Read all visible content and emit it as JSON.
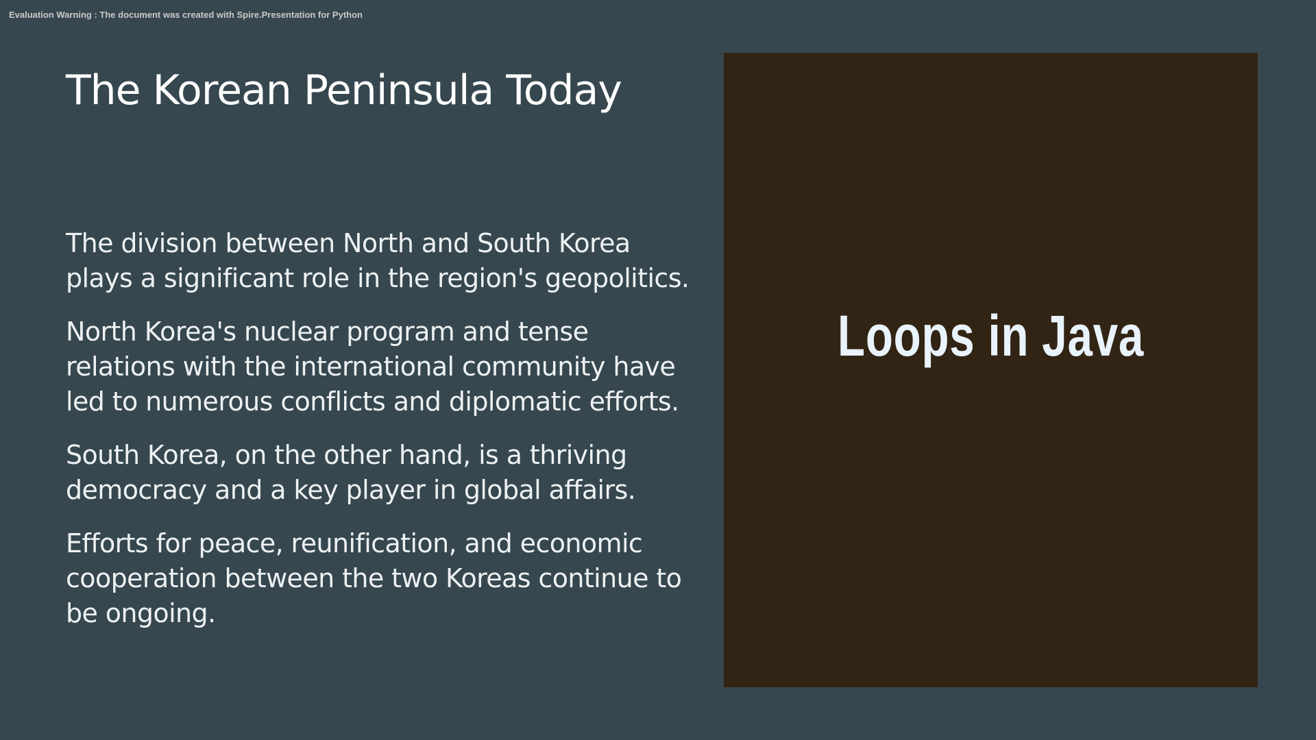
{
  "watermark": "Evaluation Warning : The document was created with Spire.Presentation for Python",
  "slide": {
    "title": "The Korean Peninsula Today",
    "paragraphs": [
      "The division between North and South Korea plays a significant role in the region's geopolitics.",
      "North Korea's nuclear program and tense relations with the international community have led to numerous conflicts and diplomatic efforts.",
      "South Korea, on the other hand, is a thriving democracy and a key player in global affairs.",
      "Efforts for peace, reunification, and economic cooperation between the two Koreas continue to be ongoing."
    ],
    "image_text": "Loops in Java"
  },
  "colors": {
    "background": "#36474f",
    "image_panel": "#322414",
    "text": "#ffffff"
  }
}
